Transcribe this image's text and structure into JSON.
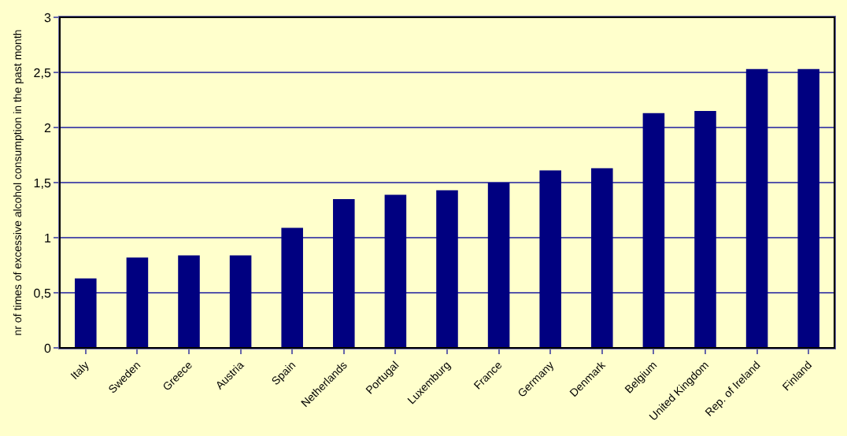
{
  "chart_data": {
    "type": "bar",
    "ylabel": "nr of times of excessive alcohol consumption in the past month",
    "categories": [
      "Italy",
      "Sweden",
      "Greece",
      "Austria",
      "Spain",
      "Netherlands",
      "Portugal",
      "Luxemburg",
      "France",
      "Germany",
      "Denmark",
      "Belgium",
      "United Kingdom",
      "Rep. of Ireland",
      "Finland"
    ],
    "values": [
      0.63,
      0.82,
      0.84,
      0.84,
      1.09,
      1.35,
      1.39,
      1.43,
      1.5,
      1.61,
      1.63,
      2.13,
      2.15,
      2.53,
      2.53
    ],
    "color": "#000080",
    "ylim": [
      0,
      3
    ],
    "yticks": [
      0,
      {
        "value": 0.5,
        "label": "0,5"
      },
      1,
      {
        "value": 1.5,
        "label": "1,5"
      },
      2,
      {
        "value": 2.5,
        "label": "2,5"
      },
      3
    ],
    "grid": "y"
  }
}
